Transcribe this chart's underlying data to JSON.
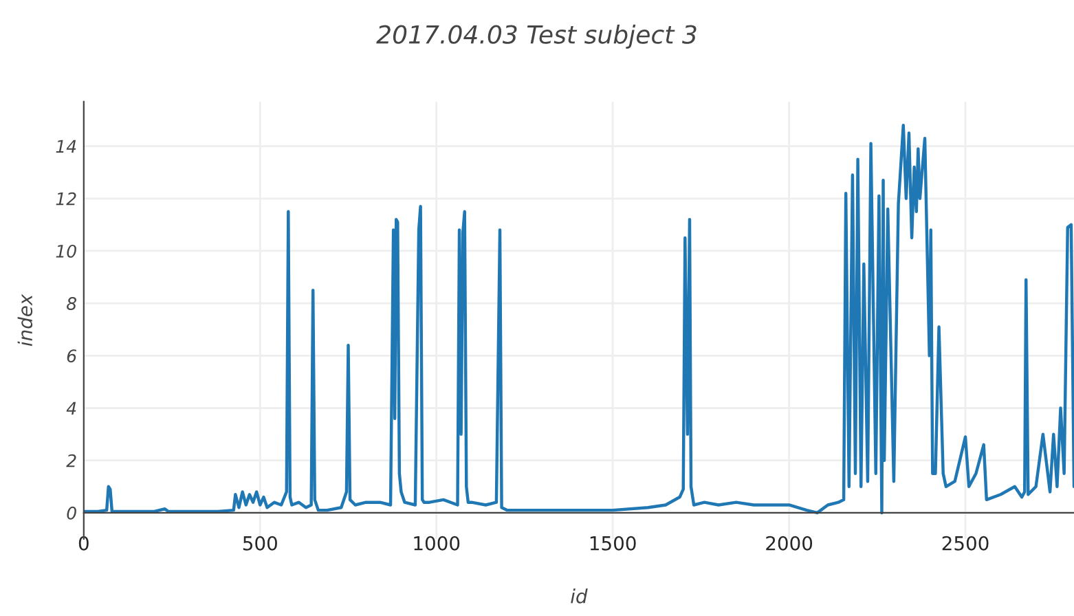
{
  "chart_data": {
    "type": "line",
    "title": "2017.04.03 Test subject 3",
    "xlabel": "id",
    "ylabel": "index",
    "xlim": [
      0,
      2808
    ],
    "ylim": [
      -1,
      15.7
    ],
    "xticks": [
      0,
      500,
      1000,
      1500,
      2000,
      2500
    ],
    "yticks": [
      0,
      2,
      4,
      6,
      8,
      10,
      12,
      14
    ],
    "grid": true,
    "series": [
      {
        "color": "#1f77b4",
        "x": [
          0,
          40,
          65,
          70,
          75,
          80,
          120,
          200,
          230,
          240,
          300,
          380,
          425,
          430,
          440,
          450,
          460,
          470,
          480,
          490,
          500,
          510,
          520,
          540,
          560,
          575,
          580,
          585,
          590,
          610,
          630,
          645,
          650,
          655,
          665,
          690,
          730,
          745,
          750,
          755,
          770,
          800,
          840,
          870,
          878,
          882,
          886,
          890,
          895,
          900,
          910,
          940,
          950,
          955,
          960,
          965,
          980,
          1020,
          1060,
          1065,
          1070,
          1075,
          1080,
          1085,
          1090,
          1100,
          1140,
          1170,
          1180,
          1185,
          1200,
          1300,
          1400,
          1500,
          1600,
          1650,
          1690,
          1700,
          1705,
          1712,
          1718,
          1722,
          1730,
          1760,
          1800,
          1850,
          1900,
          1950,
          2000,
          2050,
          2080,
          2110,
          2140,
          2155,
          2161,
          2170,
          2180,
          2188,
          2195,
          2204,
          2212,
          2223,
          2232,
          2246,
          2255,
          2263,
          2267,
          2270,
          2280,
          2297,
          2310,
          2324,
          2332,
          2340,
          2348,
          2355,
          2361,
          2366,
          2371,
          2385,
          2398,
          2402,
          2407,
          2415,
          2425,
          2437,
          2445,
          2470,
          2500,
          2510,
          2530,
          2552,
          2560,
          2600,
          2640,
          2660,
          2668,
          2672,
          2678,
          2700,
          2720,
          2740,
          2750,
          2760,
          2770,
          2780,
          2790,
          2800,
          2808
        ],
        "values": [
          0.05,
          0.05,
          0.1,
          1.0,
          0.9,
          0.05,
          0.05,
          0.05,
          0.15,
          0.05,
          0.05,
          0.05,
          0.1,
          0.7,
          0.2,
          0.8,
          0.3,
          0.7,
          0.4,
          0.8,
          0.3,
          0.6,
          0.2,
          0.4,
          0.3,
          0.8,
          11.5,
          0.6,
          0.3,
          0.4,
          0.2,
          0.3,
          8.5,
          0.5,
          0.1,
          0.1,
          0.2,
          0.8,
          6.4,
          0.5,
          0.3,
          0.4,
          0.4,
          0.3,
          10.8,
          3.6,
          11.2,
          11.1,
          1.5,
          0.8,
          0.4,
          0.3,
          10.8,
          11.7,
          0.5,
          0.4,
          0.4,
          0.5,
          0.3,
          10.8,
          3.0,
          10.7,
          11.5,
          1.0,
          0.4,
          0.4,
          0.3,
          0.4,
          10.8,
          0.2,
          0.1,
          0.1,
          0.1,
          0.1,
          0.2,
          0.3,
          0.6,
          0.9,
          10.5,
          3.0,
          11.2,
          1.0,
          0.3,
          0.4,
          0.3,
          0.4,
          0.3,
          0.3,
          0.3,
          0.1,
          0.0,
          0.3,
          0.4,
          0.5,
          12.2,
          1.0,
          12.9,
          1.5,
          13.5,
          1.0,
          9.5,
          1.2,
          14.1,
          1.5,
          12.1,
          0.0,
          12.7,
          2.0,
          11.6,
          1.2,
          11.8,
          14.8,
          12.0,
          14.5,
          10.5,
          13.2,
          11.5,
          13.9,
          12.0,
          14.3,
          6.0,
          10.8,
          1.5,
          1.5,
          7.1,
          1.5,
          1.0,
          1.2,
          2.9,
          1.0,
          1.5,
          2.6,
          0.5,
          0.7,
          1.0,
          0.6,
          0.8,
          8.9,
          0.7,
          1.0,
          3.0,
          0.8,
          3.0,
          1.0,
          4.0,
          1.5,
          10.9,
          11.0,
          1.0
        ]
      }
    ]
  }
}
